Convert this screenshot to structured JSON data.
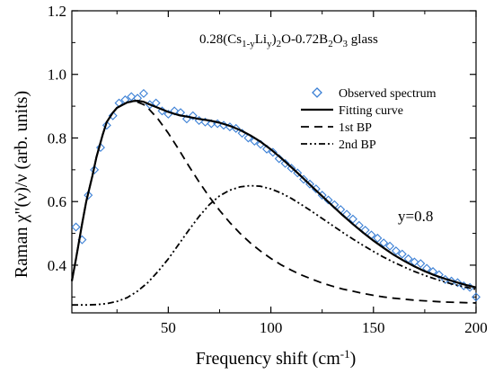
{
  "chart_data": {
    "type": "line",
    "title": "",
    "title_parts": {
      "prefix": "0.28(Cs",
      "sub1": "1-y",
      "mid1": "Li",
      "sub2": "y",
      "mid2": ")",
      "sub3": "2",
      "suffix": "O-0.72B",
      "sub4": "2",
      "mid3": "O",
      "sub5": "3",
      "tail": " glass"
    },
    "xlabel": "Frequency shift (cm",
    "xlabel_sup": "-1",
    "xlabel_close": ")",
    "ylabel": "Raman  χ\"(ν)/ν  (arb. units)",
    "annotation": "y=0.8",
    "xlim": [
      3,
      200
    ],
    "ylim": [
      0.25,
      1.2
    ],
    "x_ticks": [
      50,
      100,
      150,
      200
    ],
    "x_tick_labels": [
      "50",
      "100",
      "150",
      "200"
    ],
    "y_ticks": [
      0.4,
      0.6,
      0.8,
      1.0,
      1.2
    ],
    "y_tick_labels": [
      "0.4",
      "0.6",
      "0.8",
      "1.0",
      "1.2"
    ],
    "legend": [
      {
        "label": "Observed spectrum",
        "style": "diamond"
      },
      {
        "label": "Fitting curve",
        "style": "solid"
      },
      {
        "label": "1st BP",
        "style": "dashed"
      },
      {
        "label": "2nd BP",
        "style": "dashdot"
      }
    ],
    "legend_position": "top-right",
    "colors": {
      "observed": "#3a7fd5",
      "lines": "#000000"
    },
    "series": [
      {
        "name": "Fitting curve",
        "style": "solid",
        "x": [
          3,
          5,
          8,
          10,
          13,
          15,
          18,
          20,
          23,
          25,
          28,
          30,
          33,
          35,
          38,
          40,
          45,
          50,
          55,
          60,
          65,
          70,
          75,
          80,
          85,
          90,
          95,
          100,
          105,
          110,
          115,
          120,
          125,
          130,
          135,
          140,
          145,
          150,
          155,
          160,
          165,
          170,
          175,
          180,
          185,
          190,
          195,
          200
        ],
        "y": [
          0.35,
          0.42,
          0.53,
          0.6,
          0.68,
          0.74,
          0.81,
          0.85,
          0.88,
          0.895,
          0.905,
          0.912,
          0.916,
          0.917,
          0.914,
          0.908,
          0.895,
          0.882,
          0.872,
          0.866,
          0.86,
          0.855,
          0.848,
          0.838,
          0.825,
          0.808,
          0.788,
          0.764,
          0.737,
          0.708,
          0.678,
          0.647,
          0.617,
          0.587,
          0.557,
          0.529,
          0.502,
          0.477,
          0.454,
          0.432,
          0.413,
          0.396,
          0.381,
          0.368,
          0.357,
          0.347,
          0.338,
          0.33
        ]
      },
      {
        "name": "1st BP",
        "style": "dashed",
        "x": [
          3,
          5,
          8,
          10,
          13,
          15,
          18,
          20,
          23,
          25,
          28,
          30,
          33,
          35,
          38,
          40,
          45,
          50,
          55,
          60,
          65,
          70,
          75,
          80,
          85,
          90,
          95,
          100,
          105,
          110,
          115,
          120,
          125,
          130,
          135,
          140,
          145,
          150,
          155,
          160,
          165,
          170,
          175,
          180,
          185,
          190,
          195,
          200
        ],
        "y": [
          0.35,
          0.42,
          0.53,
          0.6,
          0.68,
          0.74,
          0.81,
          0.85,
          0.88,
          0.895,
          0.905,
          0.912,
          0.915,
          0.913,
          0.905,
          0.895,
          0.86,
          0.815,
          0.765,
          0.712,
          0.662,
          0.615,
          0.572,
          0.534,
          0.5,
          0.47,
          0.444,
          0.421,
          0.401,
          0.384,
          0.369,
          0.356,
          0.344,
          0.334,
          0.325,
          0.318,
          0.311,
          0.305,
          0.3,
          0.296,
          0.293,
          0.29,
          0.288,
          0.286,
          0.284,
          0.283,
          0.282,
          0.281
        ]
      },
      {
        "name": "2nd BP",
        "style": "dashdot",
        "x": [
          3,
          10,
          15,
          20,
          25,
          30,
          35,
          40,
          45,
          50,
          55,
          60,
          65,
          70,
          75,
          80,
          85,
          90,
          95,
          100,
          105,
          110,
          115,
          120,
          125,
          130,
          135,
          140,
          145,
          150,
          155,
          160,
          165,
          170,
          175,
          180,
          185,
          190,
          195,
          200
        ],
        "y": [
          0.275,
          0.275,
          0.276,
          0.279,
          0.286,
          0.298,
          0.318,
          0.345,
          0.38,
          0.42,
          0.465,
          0.51,
          0.553,
          0.59,
          0.618,
          0.636,
          0.646,
          0.65,
          0.648,
          0.64,
          0.627,
          0.61,
          0.59,
          0.569,
          0.547,
          0.525,
          0.503,
          0.482,
          0.462,
          0.443,
          0.425,
          0.409,
          0.394,
          0.38,
          0.368,
          0.357,
          0.347,
          0.338,
          0.331,
          0.324
        ]
      },
      {
        "name": "Observed spectrum",
        "style": "diamond",
        "x": [
          5,
          8,
          11,
          14,
          17,
          20,
          23,
          26,
          29,
          32,
          35,
          38,
          41,
          44,
          47,
          50,
          53,
          56,
          59,
          62,
          65,
          68,
          71,
          74,
          77,
          80,
          83,
          86,
          89,
          92,
          95,
          98,
          101,
          104,
          107,
          110,
          113,
          116,
          119,
          122,
          125,
          128,
          131,
          134,
          137,
          140,
          143,
          146,
          149,
          152,
          155,
          158,
          161,
          164,
          167,
          170,
          173,
          176,
          179,
          182,
          185,
          188,
          191,
          194,
          197,
          200
        ],
        "y": [
          0.52,
          0.48,
          0.62,
          0.7,
          0.77,
          0.84,
          0.87,
          0.91,
          0.92,
          0.93,
          0.925,
          0.94,
          0.905,
          0.91,
          0.885,
          0.875,
          0.885,
          0.88,
          0.86,
          0.87,
          0.855,
          0.85,
          0.845,
          0.845,
          0.84,
          0.835,
          0.83,
          0.815,
          0.8,
          0.79,
          0.78,
          0.765,
          0.755,
          0.735,
          0.72,
          0.705,
          0.69,
          0.67,
          0.655,
          0.64,
          0.62,
          0.605,
          0.59,
          0.575,
          0.56,
          0.545,
          0.525,
          0.51,
          0.495,
          0.485,
          0.47,
          0.46,
          0.445,
          0.435,
          0.42,
          0.41,
          0.405,
          0.39,
          0.38,
          0.37,
          0.355,
          0.35,
          0.345,
          0.335,
          0.33,
          0.3
        ]
      }
    ]
  }
}
